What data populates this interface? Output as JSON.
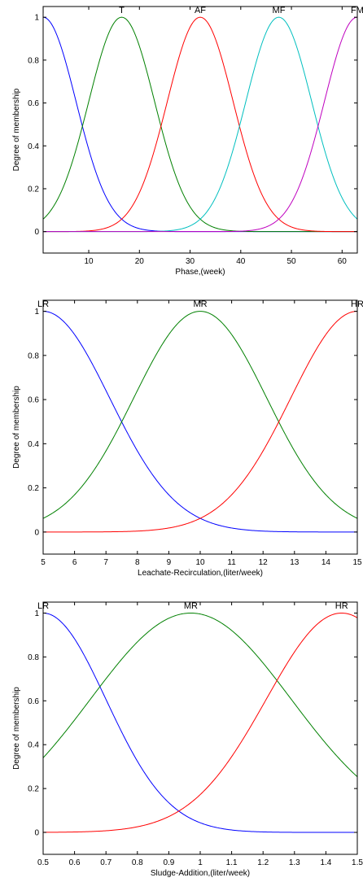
{
  "chart_data": [
    {
      "type": "line",
      "xlabel": "Phase,(week)",
      "ylabel": "Degree of membership",
      "xlim": [
        1,
        63
      ],
      "ylim": [
        -0.1,
        1.05
      ],
      "xticks": [
        "10",
        "20",
        "30",
        "40",
        "50",
        "60"
      ],
      "xtick_values": [
        10,
        20,
        30,
        40,
        50,
        60
      ],
      "yticks": [
        "0",
        "0.2",
        "0.4",
        "0.6",
        "0.8",
        "1"
      ],
      "ytick_values": [
        0,
        0.2,
        0.4,
        0.6,
        0.8,
        1
      ],
      "grid": false,
      "mf_type": "gaussian",
      "series": [
        {
          "name": "I",
          "center": 1,
          "sigma": 6.5,
          "color": "#0000ff",
          "label_x": 1
        },
        {
          "name": "T",
          "center": 16.5,
          "sigma": 6.5,
          "color": "#008000",
          "label_x": 16.5
        },
        {
          "name": "AF",
          "center": 32,
          "sigma": 6.5,
          "color": "#ff0000",
          "label_x": 32
        },
        {
          "name": "MF",
          "center": 47.5,
          "sigma": 6.5,
          "color": "#00bfbf",
          "label_x": 47.5
        },
        {
          "name": "FM",
          "center": 63,
          "sigma": 6.5,
          "color": "#bf00bf",
          "label_x": 63
        }
      ]
    },
    {
      "type": "line",
      "xlabel": "Leachate-Recirculation,(liter/week)",
      "ylabel": "Degree of membership",
      "xlim": [
        5,
        15
      ],
      "ylim": [
        -0.1,
        1.05
      ],
      "xticks": [
        "5",
        "6",
        "7",
        "8",
        "9",
        "10",
        "11",
        "12",
        "13",
        "14",
        "15"
      ],
      "xtick_values": [
        5,
        6,
        7,
        8,
        9,
        10,
        11,
        12,
        13,
        14,
        15
      ],
      "yticks": [
        "0",
        "0.2",
        "0.4",
        "0.6",
        "0.8",
        "1"
      ],
      "ytick_values": [
        0,
        0.2,
        0.4,
        0.6,
        0.8,
        1
      ],
      "grid": false,
      "mf_type": "gaussian",
      "series": [
        {
          "name": "LR",
          "center": 5,
          "sigma": 2.12,
          "color": "#0000ff",
          "label_x": 5
        },
        {
          "name": "MR",
          "center": 10,
          "sigma": 2.12,
          "color": "#008000",
          "label_x": 10
        },
        {
          "name": "HR",
          "center": 15,
          "sigma": 2.12,
          "color": "#ff0000",
          "label_x": 15
        }
      ]
    },
    {
      "type": "line",
      "xlabel": "Sludge-Addition,(liter/week)",
      "ylabel": "Degree of membership",
      "xlim": [
        0.5,
        1.5
      ],
      "ylim": [
        -0.1,
        1.05
      ],
      "xticks": [
        "0.5",
        "0.6",
        "0.7",
        "0.8",
        "0.9",
        "1",
        "1.1",
        "1.2",
        "1.3",
        "1.4",
        "1.5"
      ],
      "xtick_values": [
        0.5,
        0.6,
        0.7,
        0.8,
        0.9,
        1.0,
        1.1,
        1.2,
        1.3,
        1.4,
        1.5
      ],
      "yticks": [
        "0",
        "0.2",
        "0.4",
        "0.6",
        "0.8",
        "1"
      ],
      "ytick_values": [
        0,
        0.2,
        0.4,
        0.6,
        0.8,
        1
      ],
      "grid": false,
      "mf_type": "gaussian",
      "series": [
        {
          "name": "LR",
          "center": 0.5,
          "sigma": 0.2,
          "color": "#0000ff",
          "label_x": 0.5
        },
        {
          "name": "MR",
          "center": 0.97,
          "sigma": 0.32,
          "color": "#008000",
          "label_x": 0.97
        },
        {
          "name": "HR",
          "center": 1.45,
          "sigma": 0.24,
          "color": "#ff0000",
          "label_x": 1.45
        }
      ]
    }
  ]
}
